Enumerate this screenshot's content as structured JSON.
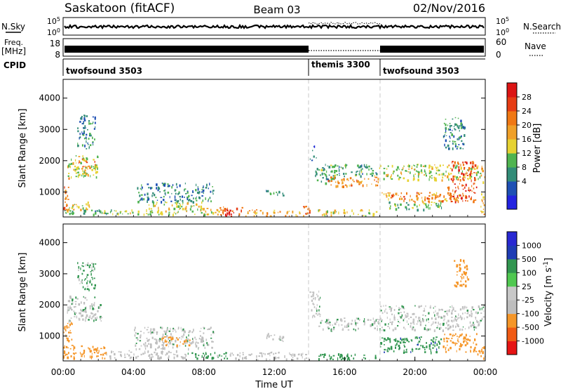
{
  "header": {
    "site": "Saskatoon (fitACF)",
    "beam": "Beam 03",
    "date": "02/Nov/2016"
  },
  "colors": {
    "trace": "#000000",
    "scan_divider": "#c8c8c8",
    "power_scale": [
      "#2323e0",
      "#1e50b4",
      "#328c78",
      "#50b450",
      "#e6d232",
      "#f0a028",
      "#f07814",
      "#e63c14",
      "#dc1414"
    ],
    "velocity_scale": [
      "#e61414",
      "#f05a14",
      "#f59628",
      "#bebebe",
      "#c8c8c8",
      "#50c850",
      "#329650",
      "#1e3cb4",
      "#2828d2"
    ]
  },
  "panels": {
    "nsky": {
      "left_label": "N.Sky",
      "right_label": "N.Search",
      "left_ticks": [
        "10^5",
        "10^0"
      ],
      "right_ticks": [
        "10^5",
        "10^0"
      ]
    },
    "freq": {
      "left_label": "Freq.",
      "left_unit": "[MHz]",
      "right_label": "Nave",
      "left_ticks": [
        "18",
        "8"
      ],
      "right_ticks": [
        "60",
        "0"
      ]
    },
    "cpid": {
      "label": "CPID",
      "segments": [
        {
          "name": "twofsound 3503",
          "start_h": 0,
          "end_h": 14
        },
        {
          "name": "themis 3300",
          "start_h": 14,
          "end_h": 18
        },
        {
          "name": "twofsound 3503",
          "start_h": 18,
          "end_h": 24
        }
      ]
    }
  },
  "chart_data": [
    {
      "type": "heatmap",
      "quantity": "power",
      "ylabel": "Slant Range [km]",
      "yticks": [
        1000,
        2000,
        3000,
        4000
      ],
      "ylim": [
        200,
        4600
      ],
      "xlim": [
        0,
        24
      ],
      "colorbar": {
        "label": "Power [dB]",
        "ticks": [
          "28",
          "24",
          "20",
          "16",
          "12",
          "8",
          "4"
        ],
        "range": [
          0,
          30
        ]
      },
      "echo_regions": [
        {
          "t0": 0.0,
          "t1": 3.5,
          "r0": 300,
          "r1": 450,
          "value": 10
        },
        {
          "t0": 0.0,
          "t1": 0.3,
          "r0": 450,
          "r1": 1500,
          "value": 22
        },
        {
          "t0": 0.3,
          "t1": 1.5,
          "r0": 450,
          "r1": 700,
          "value": 14
        },
        {
          "t0": 0.2,
          "t1": 2.0,
          "r0": 1500,
          "r1": 2200,
          "value": 14
        },
        {
          "t0": 0.8,
          "t1": 1.8,
          "r0": 1800,
          "r1": 2100,
          "value": 22
        },
        {
          "t0": 0.8,
          "t1": 1.8,
          "r0": 2400,
          "r1": 3500,
          "value": 8
        },
        {
          "t0": 2.0,
          "t1": 6.5,
          "r0": 300,
          "r1": 450,
          "value": 14
        },
        {
          "t0": 4.2,
          "t1": 8.5,
          "r0": 700,
          "r1": 1300,
          "value": 8
        },
        {
          "t0": 4.8,
          "t1": 8.0,
          "r0": 450,
          "r1": 700,
          "value": 15
        },
        {
          "t0": 6.5,
          "t1": 9.0,
          "r0": 300,
          "r1": 500,
          "value": 16
        },
        {
          "t0": 8.8,
          "t1": 10.2,
          "r0": 250,
          "r1": 550,
          "value": 24
        },
        {
          "t0": 9.2,
          "t1": 9.8,
          "r0": 250,
          "r1": 450,
          "value": 30
        },
        {
          "t0": 10.2,
          "t1": 14.0,
          "r0": 250,
          "r1": 450,
          "value": 18
        },
        {
          "t0": 13.5,
          "t1": 14.0,
          "r0": 300,
          "r1": 600,
          "value": 24
        },
        {
          "t0": 11.5,
          "t1": 12.5,
          "r0": 900,
          "r1": 1100,
          "value": 8
        },
        {
          "t0": 14.0,
          "t1": 14.4,
          "r0": 2000,
          "r1": 2500,
          "value": 6
        },
        {
          "t0": 14.3,
          "t1": 15.5,
          "r0": 1300,
          "r1": 1900,
          "value": 10
        },
        {
          "t0": 15.0,
          "t1": 18.0,
          "r0": 1200,
          "r1": 1500,
          "value": 20
        },
        {
          "t0": 15.0,
          "t1": 18.0,
          "r0": 1500,
          "r1": 1900,
          "value": 10
        },
        {
          "t0": 14.4,
          "t1": 17.8,
          "r0": 250,
          "r1": 450,
          "value": 16
        },
        {
          "t0": 18.0,
          "t1": 23.7,
          "r0": 1400,
          "r1": 1900,
          "value": 14
        },
        {
          "t0": 18.0,
          "t1": 22.5,
          "r0": 700,
          "r1": 1000,
          "value": 20
        },
        {
          "t0": 18.5,
          "t1": 21.5,
          "r0": 450,
          "r1": 700,
          "value": 12
        },
        {
          "t0": 21.8,
          "t1": 23.5,
          "r0": 700,
          "r1": 2000,
          "value": 24
        },
        {
          "t0": 21.5,
          "t1": 22.8,
          "r0": 2400,
          "r1": 3400,
          "value": 8
        },
        {
          "t0": 23.7,
          "t1": 24.0,
          "r0": 300,
          "r1": 2000,
          "value": 18
        }
      ]
    },
    {
      "type": "heatmap",
      "quantity": "velocity",
      "ylabel": "Slant Range [km]",
      "xlabel": "Time UT",
      "yticks": [
        1000,
        2000,
        3000,
        4000
      ],
      "ylim": [
        200,
        4600
      ],
      "xlim": [
        0,
        24
      ],
      "xticks": [
        "00:00",
        "04:00",
        "08:00",
        "12:00",
        "16:00",
        "20:00",
        "00:00"
      ],
      "colorbar": {
        "label": "Velocity [m s^-1]",
        "ticks": [
          "1000",
          "500",
          "100",
          "25",
          "-25",
          "-100",
          "-500",
          "-1000"
        ]
      },
      "echo_regions": [
        {
          "t0": 0.0,
          "t1": 0.5,
          "r0": 300,
          "r1": 1500,
          "value": -300
        },
        {
          "t0": 0.5,
          "t1": 2.5,
          "r0": 300,
          "r1": 700,
          "value": -200
        },
        {
          "t0": 0.2,
          "t1": 2.2,
          "r0": 1500,
          "r1": 2300,
          "value": 0
        },
        {
          "t0": 0.8,
          "t1": 1.8,
          "r0": 2500,
          "r1": 3400,
          "value": 50
        },
        {
          "t0": 2.2,
          "t1": 7.0,
          "r0": 300,
          "r1": 550,
          "value": -50
        },
        {
          "t0": 4.0,
          "t1": 8.5,
          "r0": 600,
          "r1": 1300,
          "value": 0
        },
        {
          "t0": 5.5,
          "t1": 7.2,
          "r0": 700,
          "r1": 1000,
          "value": -200
        },
        {
          "t0": 7.0,
          "t1": 9.5,
          "r0": 300,
          "r1": 500,
          "value": 60
        },
        {
          "t0": 9.5,
          "t1": 14.0,
          "r0": 250,
          "r1": 500,
          "value": -60
        },
        {
          "t0": 11.5,
          "t1": 12.5,
          "r0": 850,
          "r1": 1100,
          "value": 0
        },
        {
          "t0": 14.0,
          "t1": 14.6,
          "r0": 1600,
          "r1": 2500,
          "value": 0
        },
        {
          "t0": 14.5,
          "t1": 18.0,
          "r0": 1200,
          "r1": 1600,
          "value": 0
        },
        {
          "t0": 14.4,
          "t1": 17.8,
          "r0": 250,
          "r1": 450,
          "value": 60
        },
        {
          "t0": 18.0,
          "t1": 23.9,
          "r0": 1200,
          "r1": 2000,
          "value": 0
        },
        {
          "t0": 18.0,
          "t1": 21.5,
          "r0": 500,
          "r1": 1000,
          "value": 70
        },
        {
          "t0": 21.5,
          "t1": 23.5,
          "r0": 500,
          "r1": 1100,
          "value": -300
        },
        {
          "t0": 22.2,
          "t1": 23.0,
          "r0": 2600,
          "r1": 3500,
          "value": -300
        },
        {
          "t0": 23.5,
          "t1": 24.0,
          "r0": 300,
          "r1": 800,
          "value": -300
        }
      ]
    }
  ]
}
